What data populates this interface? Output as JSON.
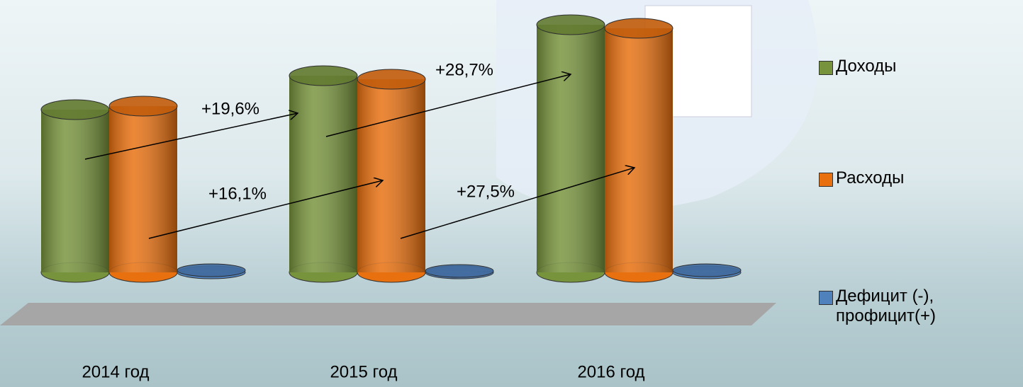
{
  "chart_data": {
    "type": "cylinder-bar",
    "categories": [
      "2014 год",
      "2015 год",
      "2016 год"
    ],
    "series": [
      {
        "name": "Доходы",
        "color": "#77933c",
        "values": [
          230,
          278,
          350
        ]
      },
      {
        "name": "Расходы",
        "color": "#e8700f",
        "values": [
          235,
          273,
          345
        ]
      },
      {
        "name": "Дефицит (-), профицит(+)",
        "color": "#4f81bd",
        "values": [
          3,
          2,
          3
        ]
      }
    ],
    "ylim": [
      0,
      360
    ],
    "annotations": [
      "+19,6%",
      "+16,1%",
      "+28,7%",
      "+27,5%"
    ]
  }
}
